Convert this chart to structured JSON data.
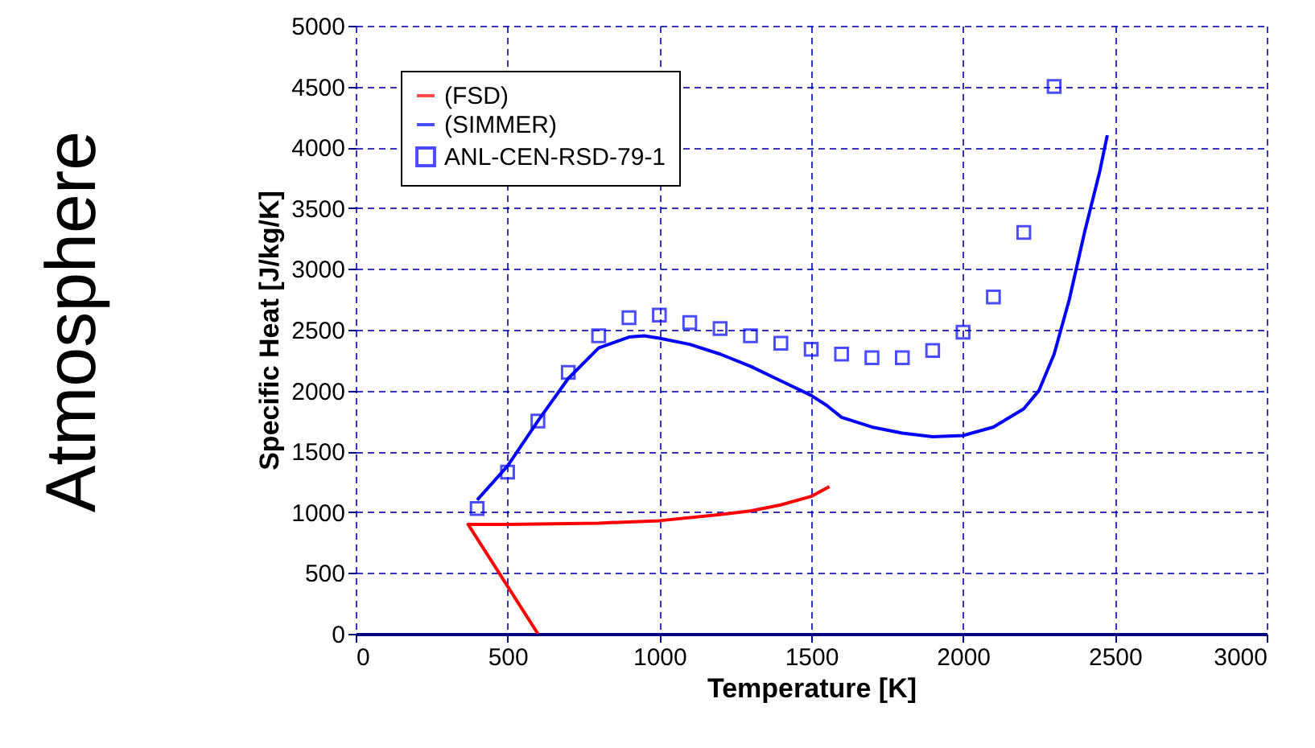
{
  "chart_data": {
    "type": "line",
    "xlabel": "Temperature [K]",
    "ylabel": "Specific Heat [J/kg/K]",
    "annotations": [
      "Atmosphere"
    ],
    "xlim": [
      0,
      3000
    ],
    "xticks": [
      0,
      500,
      1000,
      1500,
      2000,
      2500,
      3000
    ],
    "ylim": [
      0,
      5000
    ],
    "yticks": [
      0,
      500,
      1000,
      1500,
      2000,
      2500,
      3000,
      3500,
      4000,
      4500,
      5000
    ],
    "grid": true,
    "legend": "top left",
    "series": [
      {
        "name": "(FSD)",
        "color": "#ff0000",
        "x": [
          600,
          370,
          500,
          800,
          1000,
          1200,
          1300,
          1400,
          1500,
          1560
        ],
        "values": [
          0,
          900,
          900,
          910,
          930,
          980,
          1010,
          1060,
          1130,
          1210
        ]
      },
      {
        "name": "(SIMMER)",
        "color": "#0000ff",
        "x": [
          400,
          500,
          600,
          700,
          800,
          900,
          950,
          1000,
          1100,
          1200,
          1300,
          1400,
          1500,
          1550,
          1600,
          1700,
          1800,
          1900,
          2000,
          2100,
          2200,
          2250,
          2300,
          2350,
          2400,
          2450,
          2475
        ],
        "values": [
          1100,
          1380,
          1750,
          2100,
          2350,
          2440,
          2450,
          2430,
          2380,
          2300,
          2200,
          2080,
          1960,
          1880,
          1780,
          1700,
          1650,
          1620,
          1630,
          1700,
          1850,
          2000,
          2300,
          2750,
          3300,
          3800,
          4100
        ]
      },
      {
        "name": "ANL-CEN-RSD-79-1",
        "type": "scatter",
        "marker": "square",
        "color": "#0000ff",
        "x": [
          400,
          500,
          600,
          700,
          800,
          900,
          1000,
          1100,
          1200,
          1300,
          1400,
          1500,
          1600,
          1700,
          1800,
          1900,
          2000,
          2100,
          2200,
          2300
        ],
        "values": [
          1030,
          1330,
          1750,
          2150,
          2450,
          2600,
          2620,
          2560,
          2510,
          2450,
          2390,
          2340,
          2300,
          2270,
          2270,
          2330,
          2480,
          2770,
          3300,
          4500
        ]
      }
    ]
  }
}
